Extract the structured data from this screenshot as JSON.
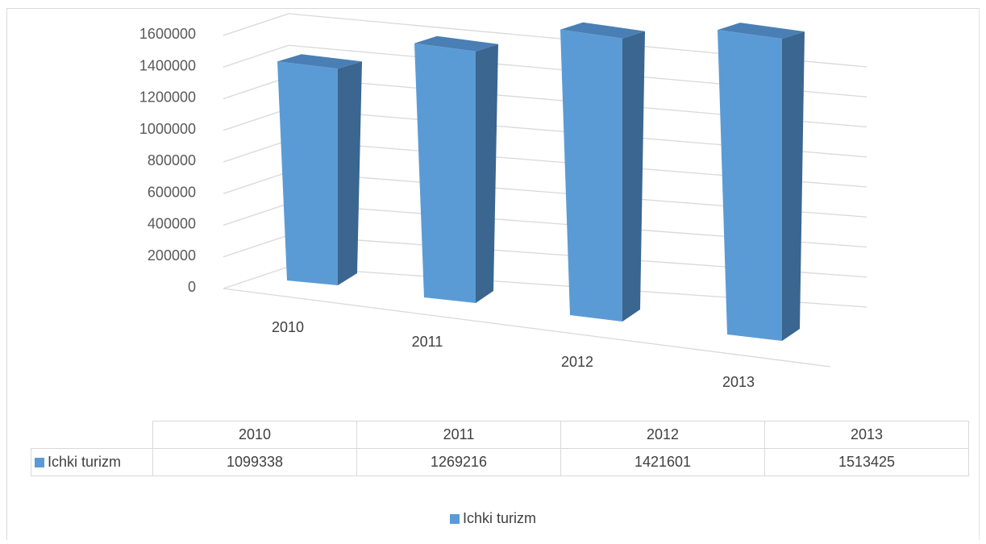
{
  "chart_data": {
    "type": "bar",
    "categories": [
      "2010",
      "2011",
      "2012",
      "2013"
    ],
    "series": [
      {
        "name": "Ichki turizm",
        "values": [
          1099338,
          1269216,
          1421601,
          1513425
        ]
      }
    ],
    "yticks": [
      "0",
      "200000",
      "400000",
      "600000",
      "800000",
      "1000000",
      "1200000",
      "1400000",
      "1600000"
    ],
    "ylim": [
      0,
      1600000
    ],
    "grid": true,
    "style": "3d-column",
    "legend": "bottom",
    "data_table": true,
    "colors": {
      "front": "#5b9bd5",
      "side": "#3a6690",
      "top": "#4a7fb5",
      "grid": "#d9d9d9"
    }
  },
  "table": {
    "header": [
      "2010",
      "2011",
      "2012",
      "2013"
    ],
    "series_label": "Ichki turizm",
    "values": [
      "1099338",
      "1269216",
      "1421601",
      "1513425"
    ]
  },
  "legend": {
    "label": "Ichki turizm"
  }
}
